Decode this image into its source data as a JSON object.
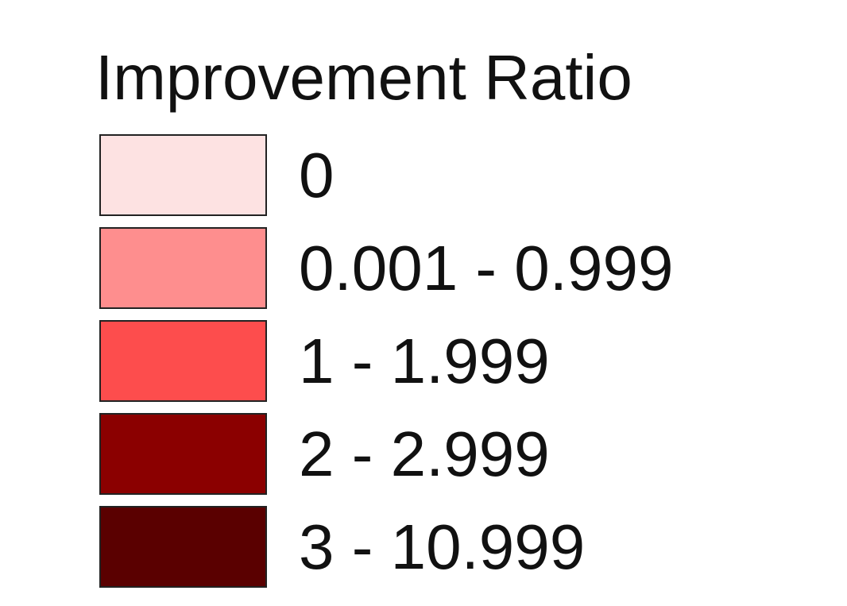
{
  "legend": {
    "title": "Improvement Ratio",
    "items": [
      {
        "label": "0",
        "color": "#fde2e2"
      },
      {
        "label": "0.001 - 0.999",
        "color": "#fe8e8e"
      },
      {
        "label": "1 - 1.999",
        "color": "#fd4d4d"
      },
      {
        "label": "2 - 2.999",
        "color": "#8b0000"
      },
      {
        "label": "3 - 10.999",
        "color": "#5a0000"
      }
    ]
  }
}
